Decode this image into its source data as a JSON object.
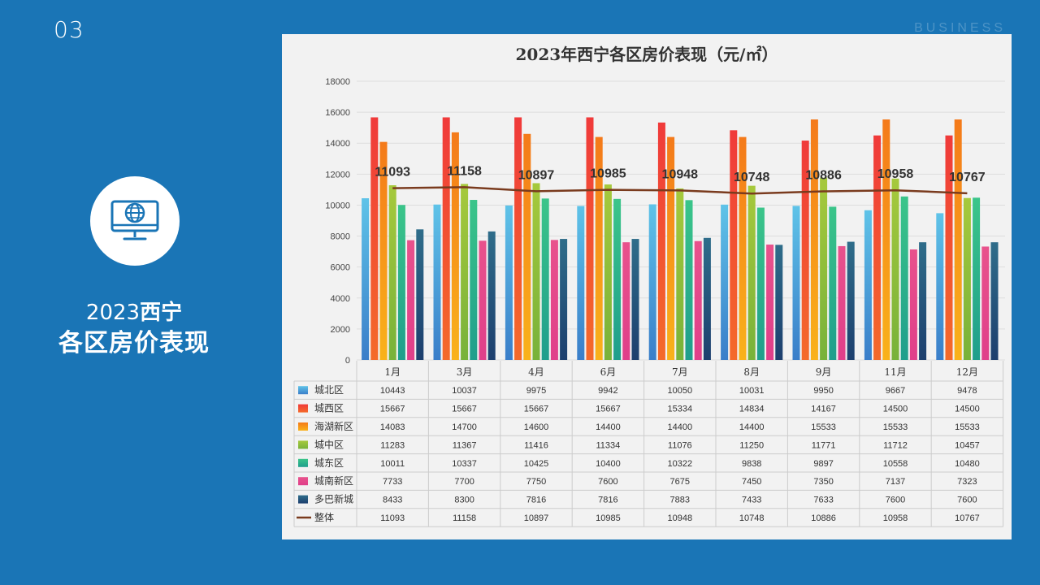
{
  "slide": {
    "number": "03",
    "watermark": "BUSINESS",
    "title_line1_num": "2023",
    "title_line1_text": "西宁",
    "title_line2": "各区房价表现"
  },
  "colors": {
    "background": "#1a75b6",
    "panel": "#f2f2f2",
    "overall_line": "#7a3b1e"
  },
  "chart_data": {
    "type": "bar",
    "title": "2023年西宁各区房价表现（元/㎡）",
    "categories": [
      "1月",
      "3月",
      "4月",
      "6月",
      "7月",
      "8月",
      "9月",
      "11月",
      "12月"
    ],
    "ylim": [
      0,
      18000
    ],
    "yticks": [
      "0",
      "2000",
      "4000",
      "6000",
      "8000",
      "10000",
      "12000",
      "14000",
      "16000",
      "18000"
    ],
    "series": [
      {
        "name": "城北区",
        "kind": "bar",
        "color_top": "#5fc3e8",
        "color_bottom": "#3a7ec9",
        "values": [
          10443,
          10037,
          9975,
          9942,
          10050,
          10031,
          9950,
          9667,
          9478
        ]
      },
      {
        "name": "城西区",
        "kind": "bar",
        "color_top": "#f03a3a",
        "color_bottom": "#f46a2a",
        "values": [
          15667,
          15667,
          15667,
          15667,
          15334,
          14834,
          14167,
          14500,
          14500
        ]
      },
      {
        "name": "海湖新区",
        "kind": "bar",
        "color_top": "#f47a1a",
        "color_bottom": "#f9b21a",
        "values": [
          14083,
          14700,
          14600,
          14400,
          14400,
          14400,
          15533,
          15533,
          15533
        ]
      },
      {
        "name": "城中区",
        "kind": "bar",
        "color_top": "#a6c93c",
        "color_bottom": "#78b23a",
        "values": [
          11283,
          11367,
          11416,
          11334,
          11076,
          11250,
          11771,
          11712,
          10457
        ]
      },
      {
        "name": "城东区",
        "kind": "bar",
        "color_top": "#3bc58a",
        "color_bottom": "#1f9e8c",
        "values": [
          10011,
          10337,
          10425,
          10400,
          10322,
          9838,
          9897,
          10558,
          10480
        ]
      },
      {
        "name": "城南新区",
        "kind": "bar",
        "color_top": "#e8528c",
        "color_bottom": "#e03f8a",
        "values": [
          7733,
          7700,
          7750,
          7600,
          7675,
          7450,
          7350,
          7137,
          7323
        ]
      },
      {
        "name": "多巴新城",
        "kind": "bar",
        "color_top": "#2f6d8a",
        "color_bottom": "#1d3f6e",
        "values": [
          8433,
          8300,
          7816,
          7816,
          7883,
          7433,
          7633,
          7600,
          7600
        ]
      },
      {
        "name": "整体",
        "kind": "line",
        "color": "#7a3b1e",
        "values": [
          11093,
          11158,
          10897,
          10985,
          10948,
          10748,
          10886,
          10958,
          10767
        ]
      }
    ],
    "data_labels": [
      "11093",
      "11158",
      "10897",
      "10985",
      "10948",
      "10748",
      "10886",
      "10958",
      "10767"
    ],
    "table": {
      "rows": [
        {
          "name": "城北区",
          "cells": [
            "10443",
            "10037",
            "9975",
            "9942",
            "10050",
            "10031",
            "9950",
            "9667",
            "9478"
          ]
        },
        {
          "name": "城西区",
          "cells": [
            "15667",
            "15667",
            "15667",
            "15667",
            "15334",
            "14834",
            "14167",
            "14500",
            "14500"
          ]
        },
        {
          "name": "海湖新区",
          "cells": [
            "14083",
            "14700",
            "14600",
            "14400",
            "14400",
            "14400",
            "15533",
            "15533",
            "15533"
          ]
        },
        {
          "name": "城中区",
          "cells": [
            "11283",
            "11367",
            "11416",
            "11334",
            "11076",
            "11250",
            "11771",
            "11712",
            "10457"
          ]
        },
        {
          "name": "城东区",
          "cells": [
            "10011",
            "10337",
            "10425",
            "10400",
            "10322",
            "9838",
            "9897",
            "10558",
            "10480"
          ]
        },
        {
          "name": "城南新区",
          "cells": [
            "7733",
            "7700",
            "7750",
            "7600",
            "7675",
            "7450",
            "7350",
            "7137",
            "7323"
          ]
        },
        {
          "name": "多巴新城",
          "cells": [
            "8433",
            "8300",
            "7816",
            "7816",
            "7883",
            "7433",
            "7633",
            "7600",
            "7600"
          ]
        },
        {
          "name": "整体",
          "cells": [
            "11093",
            "11158",
            "10897",
            "10985",
            "10948",
            "10748",
            "10886",
            "10958",
            "10767"
          ]
        }
      ]
    }
  }
}
